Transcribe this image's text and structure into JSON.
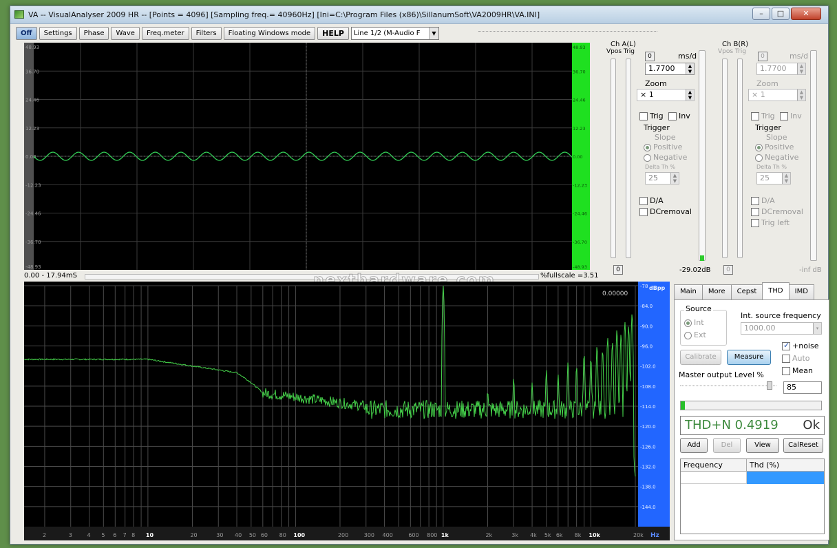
{
  "window": {
    "title": "VA -- VisualAnalyser 2009 HR --  [Points = 4096]  [Sampling freq.= 40960Hz]  [Ini=C:\\Program Files (x86)\\SillanumSoft\\VA2009HR\\VA.INI]",
    "min_label": "–",
    "max_label": "□",
    "close_label": "✕"
  },
  "toolbar": {
    "on_off": "Off",
    "settings": "Settings",
    "phase": "Phase",
    "wave": "Wave",
    "freqmeter": "Freq.meter",
    "filters": "Filters",
    "floating": "Floating Windows mode",
    "help": "HELP",
    "line_select": "Line 1/2 (M-Audio F"
  },
  "scope": {
    "left_ticks": [
      "48.93",
      "36.70",
      "24.46",
      "12.23",
      "0.00",
      "-12.23",
      "-24.46",
      "-36.70",
      "-48.93"
    ],
    "right_ticks": [
      "48.93",
      "36.70",
      "24.46",
      "12.23",
      "0.00",
      "-12.23",
      "-24.46",
      "-36.70",
      "-48.93"
    ],
    "time_label": "0.00 - 17.94mS",
    "fullscale_label": "%fullscale =3.51",
    "trace_color": "#33cc55"
  },
  "chA": {
    "title": "Ch A(L)",
    "vpos_trig": "Vpos Trig",
    "zero_btn": "0",
    "ms_d": "ms/d",
    "ms_value": "1.7700",
    "zoom_label": "Zoom",
    "zoom_value": "× 1",
    "trig": "Trig",
    "inv": "Inv",
    "trigger": "Trigger",
    "slope": "Slope",
    "positive": "Positive",
    "negative": "Negative",
    "delta": "Delta Th %",
    "delta_value": "25",
    "da": "D/A",
    "dcremoval": "DCremoval",
    "bottom_zero": "0",
    "level_db": "-29.02dB"
  },
  "chB": {
    "title": "Ch B(R)",
    "vpos_trig": "Vpos Trig",
    "zero_btn": "0",
    "ms_d": "ms/d",
    "ms_value": "1.7700",
    "zoom_label": "Zoom",
    "zoom_value": "× 1",
    "trig": "Trig",
    "inv": "Inv",
    "trigger": "Trigger",
    "slope": "Slope",
    "positive": "Positive",
    "negative": "Negative",
    "delta": "Delta Th %",
    "delta_value": "25",
    "da": "D/A",
    "dcremoval": "DCremoval",
    "trig_left": "Trig left",
    "bottom_zero": "0",
    "level_db": "-inf dB"
  },
  "spectrum": {
    "readout": "0.00000",
    "unit": "dBpp",
    "y_ticks": [
      "-78",
      "-84.0",
      "-90.0",
      "-96.0",
      "-102.0",
      "-108.0",
      "-114.0",
      "-120.0",
      "-126.0",
      "-132.0",
      "-138.0",
      "-144.0"
    ],
    "x_ticks": [
      "2",
      "3",
      "4",
      "5",
      "6",
      "7",
      "8",
      "10",
      "20",
      "30",
      "40",
      "50",
      "60",
      "80",
      "100",
      "200",
      "300",
      "400",
      "600",
      "800",
      "1k",
      "2k",
      "3k",
      "4k",
      "5k",
      "6k",
      "8k",
      "10k",
      "20k"
    ],
    "x_unit": "Hz",
    "trace_color": "#45d14a"
  },
  "watermark": "nexthardware.com",
  "tabs": [
    "Main",
    "More",
    "Cepst",
    "THD",
    "IMD"
  ],
  "thd": {
    "source_label": "Source",
    "int": "Int",
    "ext": "Ext",
    "int_freq_label": "Int. source frequency",
    "int_freq_value": "1000.00",
    "noise": "+noise",
    "auto": "Auto",
    "mean": "Mean",
    "calibrate": "Calibrate",
    "measure": "Measure",
    "master_level_label": "Master output Level %",
    "master_level_value": "85",
    "progress": 0.03,
    "result": "THD+N 0.4919",
    "result_status": "Ok",
    "add": "Add",
    "del": "Del",
    "view": "View",
    "calreset": "CalReset",
    "col_frequency": "Frequency",
    "col_thd": "Thd (%)"
  }
}
